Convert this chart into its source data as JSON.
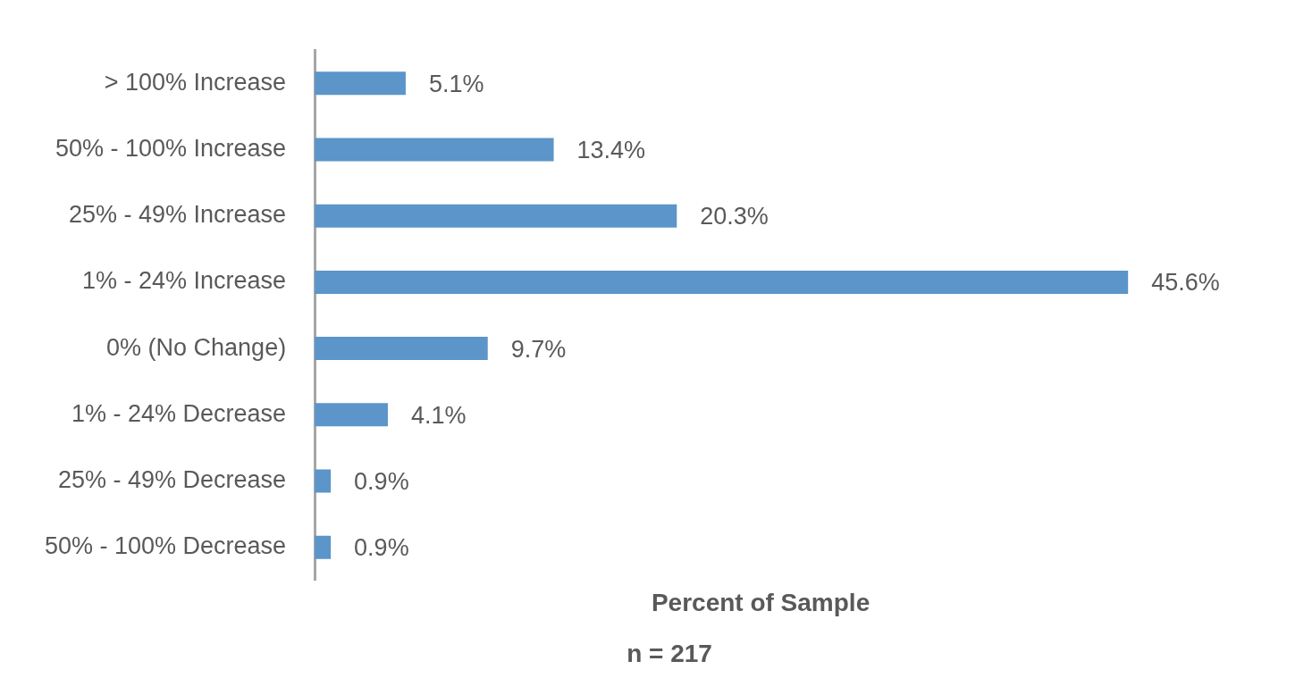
{
  "chart_data": {
    "type": "bar",
    "orientation": "horizontal",
    "xlabel": "Percent of Sample",
    "categories": [
      "> 100% Increase",
      "50% - 100% Increase",
      "25% - 49% Increase",
      "1% - 24% Increase",
      "0% (No Change)",
      "1% - 24% Decrease",
      "25% - 49% Decrease",
      "50% - 100% Decrease"
    ],
    "values": [
      5.1,
      13.4,
      20.3,
      45.6,
      9.7,
      4.1,
      0.9,
      0.9
    ],
    "value_labels": [
      "5.1%",
      "13.4%",
      "20.3%",
      "45.6%",
      "9.7%",
      "4.1%",
      "0.9%",
      "0.9%"
    ],
    "color": "#5b95c9",
    "tick_labels": "y",
    "grid": false,
    "legend": false,
    "annotations": [
      "n = 217"
    ]
  }
}
